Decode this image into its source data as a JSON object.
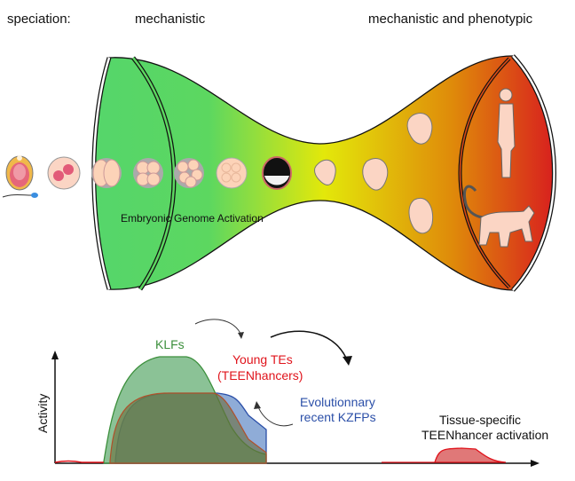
{
  "header": {
    "speciation": "speciation:",
    "mechanistic": "mechanistic",
    "mechanistic_phenotypic": "mechanistic and phenotypic"
  },
  "hourglass": {
    "ega_label": "Embryonic Genome Activation",
    "colors": {
      "start": "#55d66b",
      "middle": "#e3e80a",
      "end": "#d8201e"
    }
  },
  "activity_plot": {
    "ylabel": "Activity",
    "klfs": "KLFs",
    "young_tes_line1": "Young TEs",
    "young_tes_line2": "(TEENhancers)",
    "kzfps_line1": "Evolutionnary",
    "kzfps_line2": "recent KZFPs",
    "tissue_line1": "Tissue-specific",
    "tissue_line2": "TEENhancer activation",
    "colors": {
      "klf": "#3c8f3c",
      "te": "#e0141c",
      "kzfp": "#2b4fa8"
    }
  }
}
